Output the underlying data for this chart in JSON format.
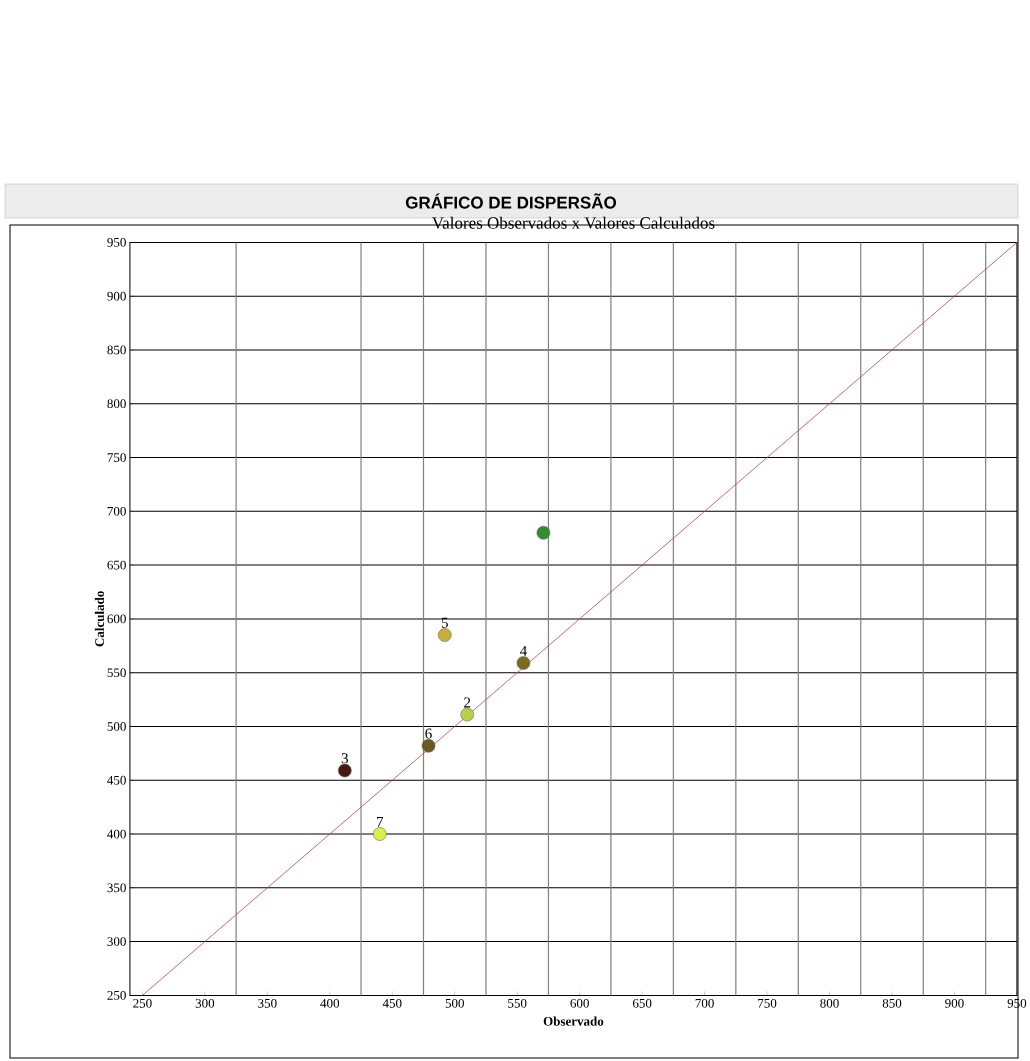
{
  "chart_data": {
    "type": "scatter",
    "title": "GRÁFICO DE DISPERSÃO",
    "subtitle": "Valores Observados x Valores Calculados",
    "xlabel": "Observado",
    "ylabel": "Calculado",
    "xlim": [
      240,
      950
    ],
    "ylim": [
      250,
      950
    ],
    "xticks": [
      250,
      300,
      350,
      400,
      450,
      500,
      550,
      600,
      650,
      700,
      750,
      800,
      850,
      900,
      950
    ],
    "yticks": [
      250,
      300,
      350,
      400,
      450,
      500,
      550,
      600,
      650,
      700,
      750,
      800,
      850,
      900,
      950
    ],
    "grid": "y",
    "series": [
      {
        "marker": "circle",
        "x": [
          571,
          492,
          555,
          510,
          479,
          412,
          440
        ],
        "values": [
          680,
          585,
          559,
          511,
          482,
          459,
          400
        ],
        "colors": [
          "#2f8f2f",
          "#c8b038",
          "#7d6a22",
          "#b8d048",
          "#6b5a1c",
          "#4a1a12",
          "#d8f048"
        ]
      },
      {
        "type": "line",
        "x": [
          250,
          950
        ],
        "values": [
          250,
          950
        ],
        "color": "#c04050",
        "line_style": "solid",
        "marker": "none"
      }
    ],
    "ref_lines": [
      {
        "axis": "x",
        "value": 325,
        "color": "#808080"
      },
      {
        "axis": "x",
        "value": 425,
        "color": "#808080"
      },
      {
        "axis": "x",
        "value": 475,
        "color": "#808080"
      },
      {
        "axis": "x",
        "value": 525,
        "color": "#808080"
      },
      {
        "axis": "x",
        "value": 575,
        "color": "#808080"
      },
      {
        "axis": "x",
        "value": 625,
        "color": "#808080"
      },
      {
        "axis": "x",
        "value": 675,
        "color": "#808080"
      },
      {
        "axis": "x",
        "value": 725,
        "color": "#808080"
      },
      {
        "axis": "x",
        "value": 775,
        "color": "#808080"
      },
      {
        "axis": "x",
        "value": 825,
        "color": "#808080"
      },
      {
        "axis": "x",
        "value": 875,
        "color": "#808080"
      },
      {
        "axis": "x",
        "value": 925,
        "color": "#808080"
      }
    ],
    "annotations": [
      {
        "text": "5",
        "x": 492,
        "y": 585
      },
      {
        "text": "4",
        "x": 555,
        "y": 559
      },
      {
        "text": "2",
        "x": 510,
        "y": 511
      },
      {
        "text": "6",
        "x": 479,
        "y": 482
      },
      {
        "text": "3",
        "x": 412,
        "y": 459
      },
      {
        "text": "7",
        "x": 440,
        "y": 400
      }
    ]
  }
}
